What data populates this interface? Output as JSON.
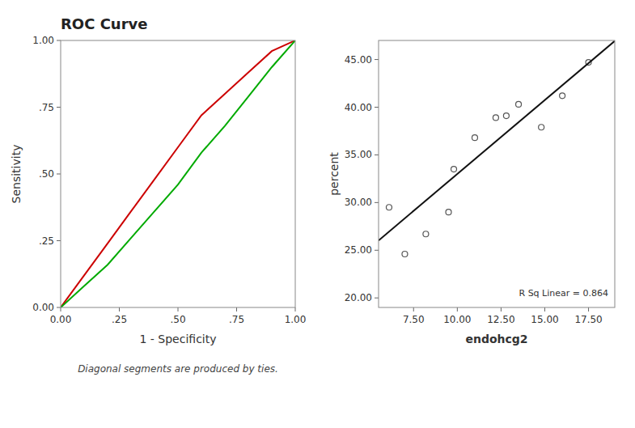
{
  "chart_data": [
    {
      "type": "line",
      "title": "ROC Curve",
      "xlabel": "1 - Specificity",
      "ylabel": "Sensitivity",
      "footnote": "Diagonal segments are produced by ties.",
      "x": [
        0.0,
        0.1,
        0.2,
        0.3,
        0.4,
        0.5,
        0.6,
        0.7,
        0.8,
        0.9,
        1.0
      ],
      "series": [
        {
          "color": "#cc0000",
          "line_style": "solid",
          "values": [
            0.0,
            0.12,
            0.24,
            0.36,
            0.48,
            0.6,
            0.72,
            0.8,
            0.88,
            0.96,
            1.0
          ]
        },
        {
          "color": "#00aa00",
          "line_style": "solid",
          "values": [
            0.0,
            0.08,
            0.16,
            0.26,
            0.36,
            0.46,
            0.58,
            0.68,
            0.79,
            0.9,
            1.0
          ]
        }
      ],
      "xlim": [
        0.0,
        1.0
      ],
      "ylim": [
        0.0,
        1.0
      ],
      "xticks": [
        {
          "value": 0.0,
          "label": "0.00"
        },
        {
          "value": 0.25,
          "label": ".25"
        },
        {
          "value": 0.5,
          "label": ".50"
        },
        {
          "value": 0.75,
          "label": ".75"
        },
        {
          "value": 1.0,
          "label": "1.00"
        }
      ],
      "yticks": [
        {
          "value": 0.0,
          "label": "0.00"
        },
        {
          "value": 0.25,
          "label": ".25"
        },
        {
          "value": 0.5,
          "label": ".50"
        },
        {
          "value": 0.75,
          "label": ".75"
        },
        {
          "value": 1.0,
          "label": "1.00"
        }
      ],
      "grid": false
    },
    {
      "type": "scatter",
      "xlabel": "endohcg2",
      "ylabel": "percent",
      "annotation": "R Sq Linear = 0.864",
      "series": [
        {
          "type": "scatter",
          "marker": "circle-open",
          "color": "#555555",
          "x": [
            6.1,
            7.0,
            8.2,
            9.5,
            9.8,
            11.0,
            12.2,
            12.8,
            13.5,
            14.8,
            16.0,
            17.5
          ],
          "values": [
            29.5,
            24.6,
            26.7,
            29.0,
            33.5,
            36.8,
            38.9,
            39.1,
            40.3,
            37.9,
            41.2,
            44.7
          ]
        },
        {
          "type": "line",
          "line_style": "solid",
          "color": "#111111",
          "x": [
            5.5,
            19.0
          ],
          "values": [
            26.025,
            46.95
          ]
        }
      ],
      "xlim": [
        5.5,
        19.0
      ],
      "ylim": [
        19.0,
        47.0
      ],
      "xticks": [
        {
          "value": 7.5,
          "label": "7.50"
        },
        {
          "value": 10.0,
          "label": "10.00"
        },
        {
          "value": 12.5,
          "label": "12.50"
        },
        {
          "value": 15.0,
          "label": "15.00"
        },
        {
          "value": 17.5,
          "label": "17.50"
        }
      ],
      "yticks": [
        {
          "value": 20.0,
          "label": "20.00"
        },
        {
          "value": 25.0,
          "label": "25.00"
        },
        {
          "value": 30.0,
          "label": "30.00"
        },
        {
          "value": 35.0,
          "label": "35.00"
        },
        {
          "value": 40.0,
          "label": "40.00"
        },
        {
          "value": 45.0,
          "label": "45.00"
        }
      ],
      "grid": false
    }
  ]
}
